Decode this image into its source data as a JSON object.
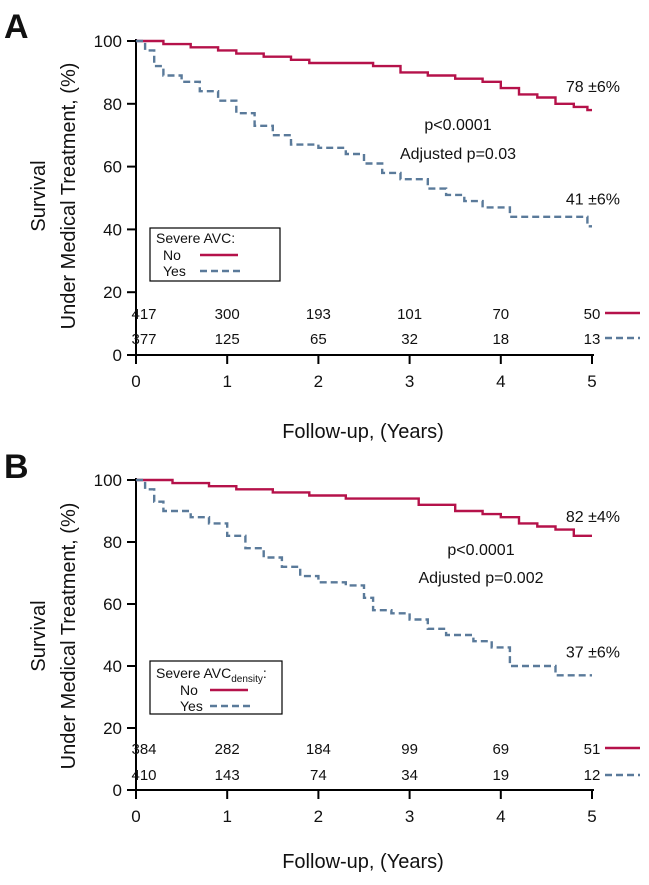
{
  "colors": {
    "no": "#b5124a",
    "yes": "#5a7a9a",
    "axis": "#000000"
  },
  "chart_data": [
    {
      "type": "line",
      "panel": "A",
      "ylabel_line1": "Survival",
      "ylabel_line2": "Under Medical Treatment, (%)",
      "xlabel": "Follow-up, (Years)",
      "xlim": [
        0,
        5
      ],
      "ylim": [
        0,
        100
      ],
      "xticks": [
        "0",
        "1",
        "2",
        "3",
        "4",
        "5"
      ],
      "yticks": [
        "0",
        "20",
        "40",
        "60",
        "80",
        "100"
      ],
      "legend_title": "Severe AVC:",
      "legend_sub": "",
      "legend_suffix": "",
      "p_value": "p<0.0001",
      "adjusted_p": "Adjusted p=0.03",
      "series": [
        {
          "name": "No",
          "style": "solid",
          "end_label": "78 ±6%",
          "risk_counts": [
            "417",
            "300",
            "193",
            "101",
            "70",
            "50"
          ],
          "x": [
            0,
            0.3,
            0.6,
            0.9,
            1.1,
            1.4,
            1.7,
            1.9,
            2.3,
            2.6,
            2.9,
            3.2,
            3.5,
            3.8,
            4.0,
            4.2,
            4.4,
            4.6,
            4.8,
            4.95,
            5.0
          ],
          "y": [
            100,
            99,
            98,
            97,
            96,
            95,
            94,
            93,
            93,
            92,
            90,
            89,
            88,
            87,
            85,
            83,
            82,
            80,
            79,
            78,
            78
          ]
        },
        {
          "name": "Yes",
          "style": "dashed",
          "end_label": "41 ±6%",
          "risk_counts": [
            "377",
            "125",
            "65",
            "32",
            "18",
            "13"
          ],
          "x": [
            0,
            0.1,
            0.2,
            0.3,
            0.5,
            0.7,
            0.9,
            1.1,
            1.3,
            1.5,
            1.7,
            2.0,
            2.3,
            2.5,
            2.7,
            2.9,
            3.2,
            3.4,
            3.6,
            3.8,
            4.1,
            4.4,
            4.6,
            4.95,
            5.0
          ],
          "y": [
            100,
            97,
            92,
            89,
            87,
            84,
            81,
            77,
            73,
            70,
            67,
            66,
            64,
            61,
            58,
            56,
            53,
            51,
            49,
            47,
            44,
            44,
            44,
            41,
            41
          ]
        }
      ]
    },
    {
      "type": "line",
      "panel": "B",
      "ylabel_line1": "Survival",
      "ylabel_line2": "Under Medical Treatment, (%)",
      "xlabel": "Follow-up, (Years)",
      "xlim": [
        0,
        5
      ],
      "ylim": [
        0,
        100
      ],
      "xticks": [
        "0",
        "1",
        "2",
        "3",
        "4",
        "5"
      ],
      "yticks": [
        "0",
        "20",
        "40",
        "60",
        "80",
        "100"
      ],
      "legend_title": "Severe AVC",
      "legend_sub": "density",
      "legend_suffix": ":",
      "p_value": "p<0.0001",
      "adjusted_p": "Adjusted p=0.002",
      "series": [
        {
          "name": "No",
          "style": "solid",
          "end_label": "82 ±4%",
          "risk_counts": [
            "384",
            "282",
            "184",
            "99",
            "69",
            "51"
          ],
          "x": [
            0,
            0.4,
            0.8,
            1.1,
            1.5,
            1.9,
            2.3,
            2.7,
            3.1,
            3.5,
            3.8,
            4.0,
            4.2,
            4.4,
            4.6,
            4.8,
            5.0
          ],
          "y": [
            100,
            99,
            98,
            97,
            96,
            95,
            94,
            94,
            92,
            90,
            89,
            88,
            86,
            85,
            84,
            82,
            82
          ]
        },
        {
          "name": "Yes",
          "style": "dashed",
          "end_label": "37 ±6%",
          "risk_counts": [
            "410",
            "143",
            "74",
            "34",
            "19",
            "12"
          ],
          "x": [
            0,
            0.1,
            0.2,
            0.3,
            0.6,
            0.8,
            1.0,
            1.2,
            1.4,
            1.6,
            1.8,
            2.0,
            2.3,
            2.5,
            2.6,
            2.8,
            3.0,
            3.2,
            3.4,
            3.7,
            3.9,
            4.1,
            4.4,
            4.6,
            5.0
          ],
          "y": [
            100,
            97,
            93,
            90,
            88,
            86,
            82,
            78,
            75,
            72,
            69,
            67,
            66,
            62,
            58,
            57,
            55,
            52,
            50,
            48,
            46,
            40,
            40,
            37,
            37
          ]
        }
      ]
    }
  ]
}
